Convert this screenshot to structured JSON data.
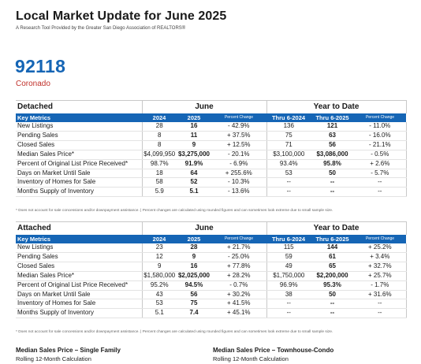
{
  "header": {
    "title": "Local Market Update for June 2025",
    "subtitle": "A Research Tool Provided by the Greater San Diego Association of REALTORS®"
  },
  "area": {
    "zip": "92118",
    "name": "Coronado"
  },
  "headings": {
    "key_metrics": "Key Metrics",
    "group_month": "June",
    "group_ytd": "Year to Date",
    "col_2024": "2024",
    "col_2025": "2025",
    "col_pct": "Percent Change",
    "col_thru_2024": "Thru 6-2024",
    "col_thru_2025": "Thru 6-2025"
  },
  "detached": {
    "label": "Detached",
    "rows": [
      {
        "metric": "New Listings",
        "m2024": "28",
        "m2025": "16",
        "mpct": "- 42.9%",
        "y2024": "136",
        "y2025": "121",
        "ypct": "- 11.0%"
      },
      {
        "metric": "Pending Sales",
        "m2024": "8",
        "m2025": "11",
        "mpct": "+ 37.5%",
        "y2024": "75",
        "y2025": "63",
        "ypct": "- 16.0%"
      },
      {
        "metric": "Closed Sales",
        "m2024": "8",
        "m2025": "9",
        "mpct": "+ 12.5%",
        "y2024": "71",
        "y2025": "56",
        "ypct": "- 21.1%"
      },
      {
        "metric": "Median Sales Price*",
        "m2024": "$4,099,950",
        "m2025": "$3,275,000",
        "mpct": "- 20.1%",
        "y2024": "$3,100,000",
        "y2025": "$3,086,000",
        "ypct": "- 0.5%"
      },
      {
        "metric": "Percent of Original List Price Received*",
        "m2024": "98.7%",
        "m2025": "91.9%",
        "mpct": "- 6.9%",
        "y2024": "93.4%",
        "y2025": "95.8%",
        "ypct": "+ 2.6%"
      },
      {
        "metric": "Days on Market Until Sale",
        "m2024": "18",
        "m2025": "64",
        "mpct": "+ 255.6%",
        "y2024": "53",
        "y2025": "50",
        "ypct": "- 5.7%"
      },
      {
        "metric": "Inventory of Homes for Sale",
        "m2024": "58",
        "m2025": "52",
        "mpct": "- 10.3%",
        "y2024": "--",
        "y2025": "--",
        "ypct": "--"
      },
      {
        "metric": "Months Supply of Inventory",
        "m2024": "5.9",
        "m2025": "5.1",
        "mpct": "- 13.6%",
        "y2024": "--",
        "y2025": "--",
        "ypct": "--"
      }
    ]
  },
  "attached": {
    "label": "Attached",
    "rows": [
      {
        "metric": "New Listings",
        "m2024": "23",
        "m2025": "28",
        "mpct": "+ 21.7%",
        "y2024": "115",
        "y2025": "144",
        "ypct": "+ 25.2%"
      },
      {
        "metric": "Pending Sales",
        "m2024": "12",
        "m2025": "9",
        "mpct": "- 25.0%",
        "y2024": "59",
        "y2025": "61",
        "ypct": "+ 3.4%"
      },
      {
        "metric": "Closed Sales",
        "m2024": "9",
        "m2025": "16",
        "mpct": "+ 77.8%",
        "y2024": "49",
        "y2025": "65",
        "ypct": "+ 32.7%"
      },
      {
        "metric": "Median Sales Price*",
        "m2024": "$1,580,000",
        "m2025": "$2,025,000",
        "mpct": "+ 28.2%",
        "y2024": "$1,750,000",
        "y2025": "$2,200,000",
        "ypct": "+ 25.7%"
      },
      {
        "metric": "Percent of Original List Price Received*",
        "m2024": "95.2%",
        "m2025": "94.5%",
        "mpct": "- 0.7%",
        "y2024": "96.9%",
        "y2025": "95.3%",
        "ypct": "- 1.7%"
      },
      {
        "metric": "Days on Market Until Sale",
        "m2024": "43",
        "m2025": "56",
        "mpct": "+ 30.2%",
        "y2024": "38",
        "y2025": "50",
        "ypct": "+ 31.6%"
      },
      {
        "metric": "Inventory of Homes for Sale",
        "m2024": "53",
        "m2025": "75",
        "mpct": "+ 41.5%",
        "y2024": "--",
        "y2025": "--",
        "ypct": "--"
      },
      {
        "metric": "Months Supply of Inventory",
        "m2024": "5.1",
        "m2025": "7.4",
        "mpct": "+ 45.1%",
        "y2024": "--",
        "y2025": "--",
        "ypct": "--"
      }
    ]
  },
  "footnote": "* Does not account for sale concessions and/or downpayment assistance.  |  Percent changes are calculated using rounded figures and can sometimes look extreme due to small sample size.",
  "bottom": {
    "left_title": "Median Sales Price – Single Family",
    "left_sub": "Rolling 12-Month Calculation",
    "right_title": "Median Sales Price – Townhouse-Condo",
    "right_sub": "Rolling 12-Month Calculation"
  },
  "colors": {
    "accent_blue": "#1565b5",
    "accent_red": "#c0312b"
  }
}
